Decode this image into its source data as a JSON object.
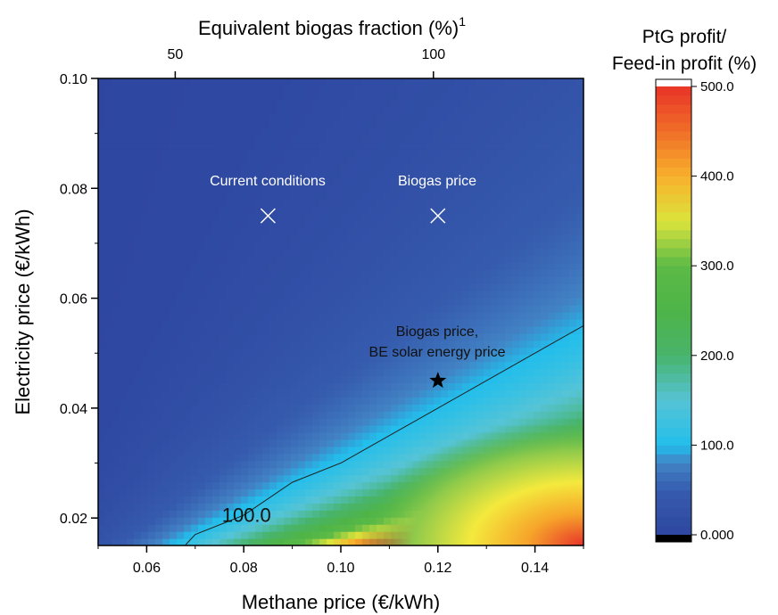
{
  "chart_data": {
    "type": "heatmap",
    "xlabel": "Methane price (€/kWh)",
    "ylabel": "Electricity price (€/kWh)",
    "x2label": "Equivalent biogas fraction (%)",
    "x2label_superscript": "1",
    "xlim": [
      0.05,
      0.15
    ],
    "ylim": [
      0.015,
      0.1
    ],
    "x_ticks": [
      0.06,
      0.08,
      0.1,
      0.12,
      0.14
    ],
    "x_tick_labels": [
      "0.06",
      "0.08",
      "0.10",
      "0.12",
      "0.14"
    ],
    "y_ticks": [
      0.02,
      0.04,
      0.06,
      0.08,
      0.1
    ],
    "y_tick_labels": [
      "0.02",
      "0.04",
      "0.06",
      "0.08",
      "0.10"
    ],
    "x2_ticks_at_methane_price": [
      0.06,
      0.12
    ],
    "x2_tick_labels": [
      "50",
      "100"
    ],
    "colorbar": {
      "title_line1": "PtG profit/",
      "title_line2": "Feed-in profit (%)",
      "range": [
        0,
        500
      ],
      "ticks": [
        0,
        100,
        200,
        300,
        400,
        500
      ],
      "tick_labels": [
        "0.000",
        "100.0",
        "200.0",
        "300.0",
        "400.0",
        "500.0"
      ],
      "over_color": "#ffffff",
      "under_color": "#000000"
    },
    "contour": {
      "level": 100,
      "label": "100.0"
    },
    "annotations": [
      {
        "text": "Current conditions",
        "marker": "x",
        "x": 0.085,
        "y": 0.075
      },
      {
        "text": "Biogas price",
        "marker": "x",
        "x": 0.12,
        "y": 0.075
      },
      {
        "text_line1": "Biogas price,",
        "text_line2": "BE solar energy price",
        "marker": "star",
        "x": 0.12,
        "y": 0.045
      }
    ]
  }
}
